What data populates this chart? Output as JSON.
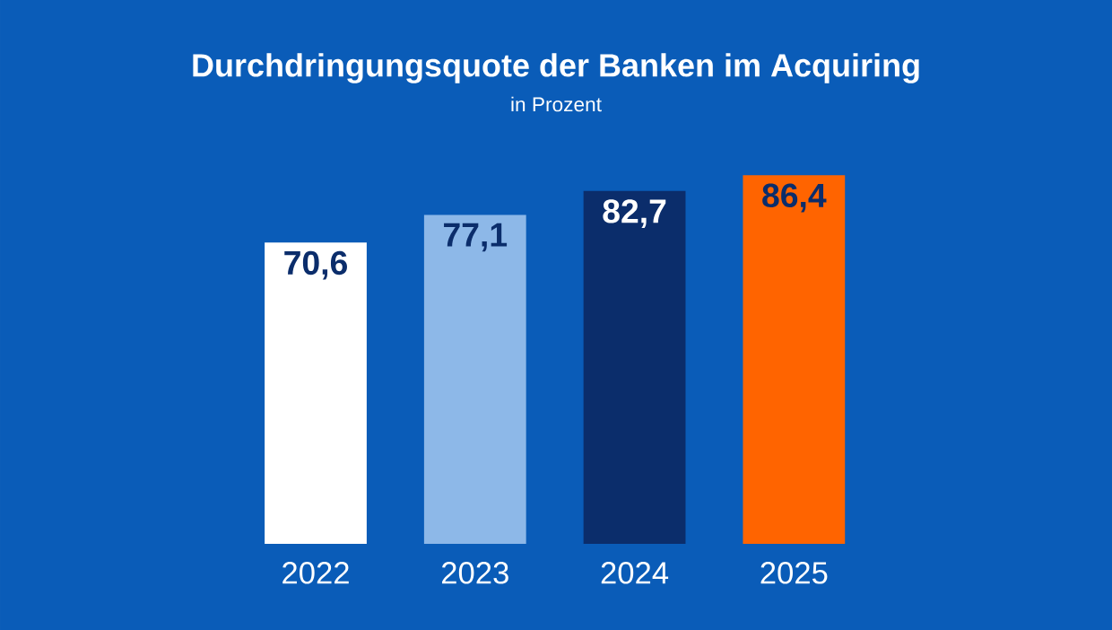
{
  "chart_data": {
    "type": "bar",
    "title": "Durchdringungsquote der Banken im Acquiring",
    "subtitle": "in Prozent",
    "categories": [
      "2022",
      "2023",
      "2024",
      "2025"
    ],
    "values": [
      70.6,
      77.1,
      82.7,
      86.4
    ],
    "value_labels": [
      "70,6",
      "77,1",
      "82,7",
      "86,4"
    ],
    "colors": [
      "#ffffff",
      "#8db8e8",
      "#0b2d6b",
      "#ff6400"
    ]
  }
}
